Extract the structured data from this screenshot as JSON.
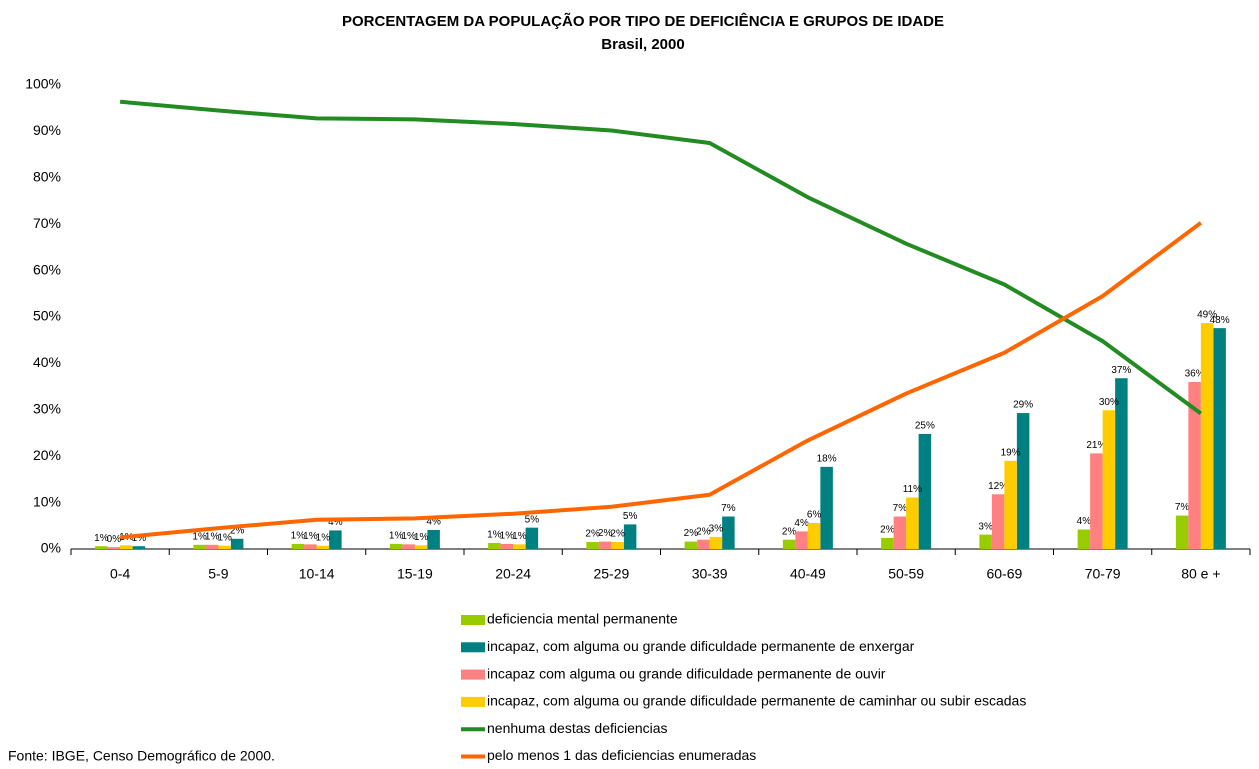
{
  "chart_data": {
    "type": "bar_line",
    "title": "PORCENTAGEM DA POPULAÇÃO POR TIPO DE DEFICIÊNCIA E GRUPOS DE IDADE",
    "subtitle": "Brasil, 2000",
    "source": "Fonte: IBGE, Censo Demográfico de 2000.",
    "categories": [
      "0-4",
      "5-9",
      "10-14",
      "15-19",
      "20-24",
      "25-29",
      "30-39",
      "40-49",
      "50-59",
      "60-69",
      "70-79",
      "80 e +"
    ],
    "ylim": [
      0,
      100
    ],
    "yticks": [
      {
        "value": 0,
        "label": "0%"
      },
      {
        "value": 10,
        "label": "10%"
      },
      {
        "value": 20,
        "label": "20%"
      },
      {
        "value": 30,
        "label": "30%"
      },
      {
        "value": 40,
        "label": "40%"
      },
      {
        "value": 50,
        "label": "50%"
      },
      {
        "value": 60,
        "label": "60%"
      },
      {
        "value": 70,
        "label": "70%"
      },
      {
        "value": 80,
        "label": "80%"
      },
      {
        "value": 90,
        "label": "90%"
      },
      {
        "value": 100,
        "label": "100%"
      }
    ],
    "grid": false,
    "series": [
      {
        "name": "deficiencia mental permanente",
        "type": "bar",
        "color": "#99cc00",
        "values": [
          0.6,
          0.9,
          1.1,
          1.1,
          1.3,
          1.5,
          1.6,
          2.0,
          2.4,
          3.1,
          4.2,
          7.2
        ],
        "value_labels": [
          "1%",
          "1%",
          "1%",
          "1%",
          "1%",
          "2%",
          "2%",
          "2%",
          "2%",
          "3%",
          "4%",
          "7%"
        ]
      },
      {
        "name": "incapaz, com alguma ou grande dificuldade permanente de enxergar",
        "type": "bar",
        "color": "#008080",
        "values": [
          0.6,
          2.2,
          4.0,
          4.1,
          4.6,
          5.3,
          7.0,
          17.7,
          24.8,
          29.3,
          36.8,
          47.6
        ],
        "value_labels": [
          "1%",
          "2%",
          "4%",
          "4%",
          "5%",
          "5%",
          "7%",
          "18%",
          "25%",
          "29%",
          "37%",
          "48%"
        ]
      },
      {
        "name": "incapaz com alguma ou grande dificuldade permanente de ouvir",
        "type": "bar",
        "color": "#ff8080",
        "values": [
          0.4,
          0.9,
          1.0,
          1.0,
          1.1,
          1.6,
          2.0,
          3.8,
          7.0,
          11.8,
          20.6,
          36.0
        ],
        "value_labels": [
          "0%",
          "1%",
          "1%",
          "1%",
          "1%",
          "2%",
          "2%",
          "4%",
          "7%",
          "12%",
          "21%",
          "36%"
        ]
      },
      {
        "name": "incapaz, com alguma ou grande dificuldade permanente de caminhar ou subir escadas",
        "type": "bar",
        "color": "#ffcc00",
        "values": [
          0.8,
          0.7,
          0.7,
          0.8,
          1.0,
          1.5,
          2.6,
          5.6,
          11.1,
          19.0,
          29.9,
          48.7
        ],
        "value_labels": [
          "1%",
          "1%",
          "1%",
          "1%",
          "1%",
          "2%",
          "3%",
          "6%",
          "11%",
          "19%",
          "30%",
          "49%"
        ]
      },
      {
        "name": "nenhuma destas deficiencias",
        "type": "line",
        "color": "#228b22",
        "values": [
          96.4,
          94.5,
          92.8,
          92.6,
          91.6,
          90.2,
          87.5,
          75.8,
          65.8,
          57.0,
          44.8,
          29.2
        ]
      },
      {
        "name": "pelo menos 1 das deficiencias enumeradas",
        "type": "line",
        "color": "#ff6600",
        "values": [
          2.5,
          4.5,
          6.3,
          6.6,
          7.6,
          9.1,
          11.7,
          23.4,
          33.5,
          42.3,
          54.5,
          70.3
        ]
      }
    ]
  }
}
